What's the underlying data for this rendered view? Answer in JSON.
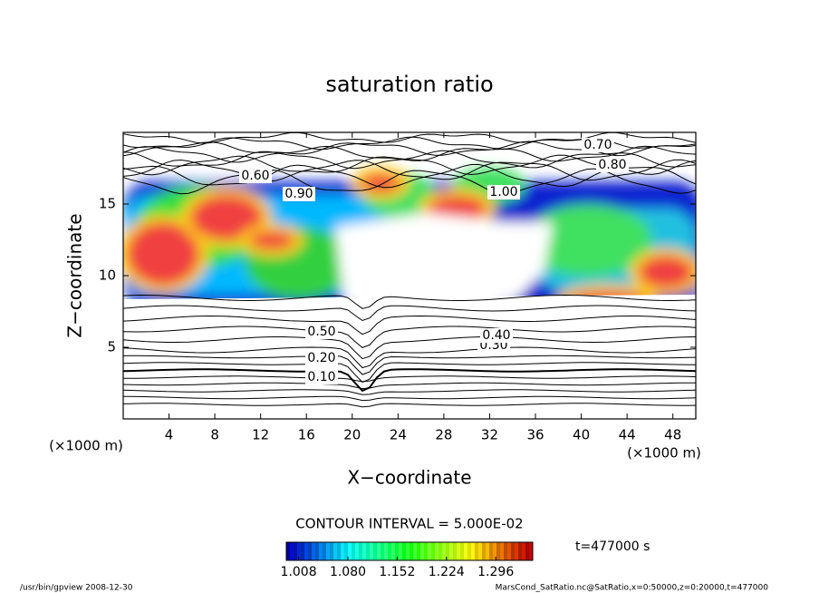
{
  "chart_data": {
    "type": "contour",
    "title": "saturation ratio",
    "xlabel": "X−coordinate",
    "ylabel": "Z−coordinate",
    "x_unit": "(×1000 m)",
    "y_unit": "(×1000 m)",
    "xlim": [
      0,
      50
    ],
    "ylim": [
      0,
      20
    ],
    "xticks": [
      4,
      8,
      12,
      16,
      20,
      24,
      28,
      32,
      36,
      40,
      44,
      48
    ],
    "yticks": [
      5,
      10,
      15
    ],
    "contour_labels": [
      "0.10",
      "0.20",
      "0.30",
      "0.40",
      "0.50",
      "0.60",
      "0.70",
      "0.80",
      "0.90",
      "1.00"
    ],
    "contour_interval": "CONTOUR INTERVAL = 5.000E-02",
    "time_label": "t=477000 s",
    "colorbar": {
      "clim": [
        0.99,
        1.35
      ],
      "ticks": [
        1.008,
        {
          "value": 1.08,
          "label": "1.080"
        },
        1.152,
        1.224,
        1.296
      ]
    },
    "footer_left": "/usr/bin/gpview   2008-12-30",
    "footer_right": "MarsCond_SatRatio.nc@SatRatio,x=0:50000,z=0:20000,t=477000"
  }
}
